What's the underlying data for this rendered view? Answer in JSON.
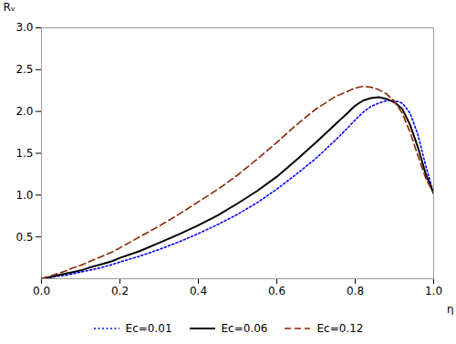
{
  "chart_data": {
    "type": "line",
    "xlabel": "η",
    "ylabel": "Rᵥ",
    "xlim": [
      0.0,
      1.0
    ],
    "ylim": [
      0.0,
      3.0
    ],
    "xticks": [
      {
        "value": 0.0,
        "label": "0.0"
      },
      0.2,
      0.4,
      0.6,
      0.8,
      {
        "value": 1.0,
        "label": "1.0"
      }
    ],
    "yticks": [
      0.5,
      {
        "value": 1.0,
        "label": "1.0"
      },
      1.5,
      {
        "value": 2.0,
        "label": "2.0"
      },
      2.5,
      {
        "value": 3.0,
        "label": "3.0"
      }
    ],
    "grid": false,
    "legend": "bottom",
    "x": [
      0.0,
      0.02,
      0.04,
      0.06,
      0.08,
      0.1,
      0.12,
      0.15,
      0.18,
      0.2,
      0.25,
      0.3,
      0.35,
      0.4,
      0.45,
      0.5,
      0.55,
      0.6,
      0.65,
      0.7,
      0.75,
      0.78,
      0.8,
      0.82,
      0.84,
      0.86,
      0.88,
      0.9,
      0.92,
      0.94,
      0.96,
      0.98,
      1.0
    ],
    "series": [
      {
        "name": "Ec=0.01",
        "color": "#0000FF",
        "line_style": "dotted",
        "values": [
          0.0,
          0.01,
          0.03,
          0.04,
          0.06,
          0.08,
          0.1,
          0.13,
          0.17,
          0.2,
          0.27,
          0.35,
          0.44,
          0.54,
          0.65,
          0.77,
          0.91,
          1.07,
          1.25,
          1.44,
          1.66,
          1.8,
          1.9,
          1.99,
          2.06,
          2.1,
          2.13,
          2.13,
          2.1,
          1.98,
          1.72,
          1.35,
          1.02
        ]
      },
      {
        "name": "Ec=0.06",
        "color": "#000000",
        "line_style": "solid",
        "values": [
          0.0,
          0.02,
          0.04,
          0.06,
          0.08,
          0.1,
          0.13,
          0.17,
          0.21,
          0.25,
          0.33,
          0.43,
          0.53,
          0.64,
          0.76,
          0.9,
          1.05,
          1.22,
          1.42,
          1.63,
          1.85,
          1.98,
          2.07,
          2.13,
          2.16,
          2.17,
          2.15,
          2.11,
          2.03,
          1.84,
          1.57,
          1.25,
          1.02
        ]
      },
      {
        "name": "Ec=0.12",
        "color": "#8B2500",
        "line_style": "dashed",
        "values": [
          0.0,
          0.03,
          0.06,
          0.09,
          0.13,
          0.16,
          0.2,
          0.26,
          0.32,
          0.37,
          0.5,
          0.63,
          0.77,
          0.92,
          1.07,
          1.24,
          1.43,
          1.63,
          1.84,
          2.03,
          2.18,
          2.24,
          2.28,
          2.3,
          2.29,
          2.26,
          2.21,
          2.12,
          1.98,
          1.75,
          1.47,
          1.2,
          1.02
        ]
      }
    ]
  }
}
